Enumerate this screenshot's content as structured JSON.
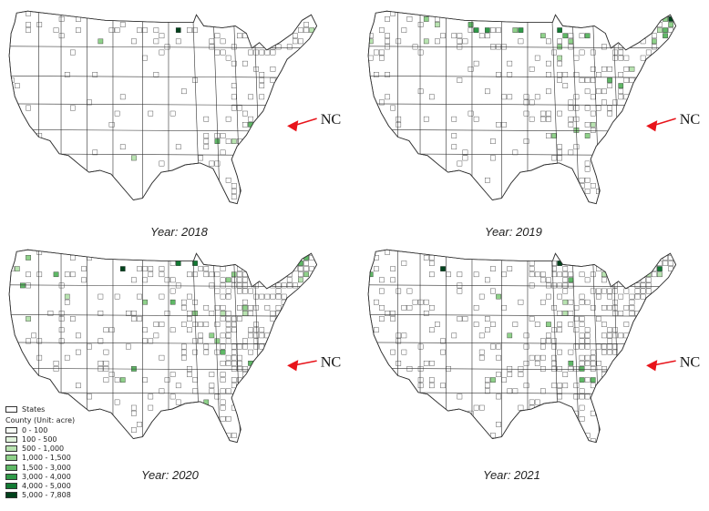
{
  "panels": [
    {
      "year_label": "Year: 2018",
      "highlight": "NC",
      "density": 0.16,
      "green": 0.03
    },
    {
      "year_label": "Year: 2019",
      "highlight": "NC",
      "density": 0.34,
      "green": 0.07
    },
    {
      "year_label": "Year: 2020",
      "highlight": "NC",
      "density": 0.52,
      "green": 0.06
    },
    {
      "year_label": "Year: 2021",
      "highlight": "NC",
      "density": 0.48,
      "green": 0.04
    }
  ],
  "legend": {
    "states_label": "States",
    "county_title": "County (Unit: acre)",
    "classes": [
      {
        "label": "0 - 100",
        "color": "#f7fcf5"
      },
      {
        "label": "100 - 500",
        "color": "#e0f3db"
      },
      {
        "label": "500 - 1,000",
        "color": "#b8e3b0"
      },
      {
        "label": "1,000 - 1,500",
        "color": "#8fd18a"
      },
      {
        "label": "1,500 - 3,000",
        "color": "#5fb866"
      },
      {
        "label": "3,000 - 4,000",
        "color": "#2f9a48"
      },
      {
        "label": "4,000 - 5,000",
        "color": "#127a33"
      },
      {
        "label": "5,000 - 7,808",
        "color": "#00421c"
      }
    ]
  },
  "colors": {
    "border": "#333333",
    "arrow": "#e8141b",
    "county_outline": "#222222"
  }
}
